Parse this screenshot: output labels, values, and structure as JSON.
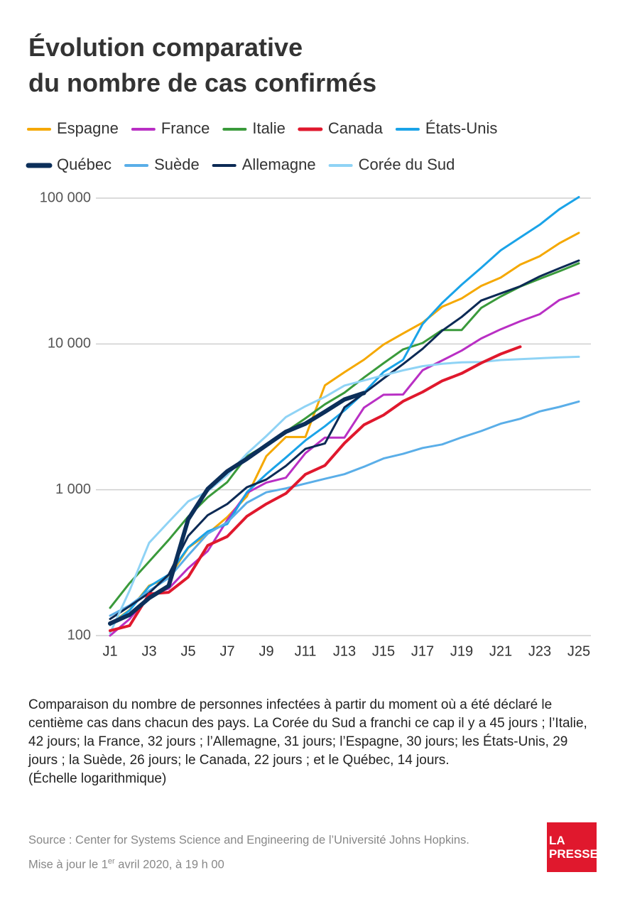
{
  "chart_data": {
    "type": "line",
    "title": [
      "Évolution comparative",
      "du nombre de cas confirmés"
    ],
    "categories": [
      "J1",
      null,
      "J3",
      null,
      "J5",
      null,
      "J7",
      null,
      "J9",
      null,
      "J11",
      null,
      "J13",
      null,
      "J15",
      null,
      "J17",
      null,
      "J19",
      null,
      "J21",
      null,
      "J23",
      null,
      "J25"
    ],
    "yscale": "log",
    "ylim": [
      100,
      100000
    ],
    "yticks": [
      100,
      {
        "value": 1000,
        "label": "1 000"
      },
      {
        "value": 10000,
        "label": "10 000"
      },
      {
        "value": 100000,
        "label": "100 000"
      }
    ],
    "grid": true,
    "legend": "top",
    "series": [
      {
        "name": "Espagne",
        "color": "#f5a800",
        "width": 3,
        "values": [
          120,
          150,
          220,
          250,
          400,
          500,
          650,
          900,
          1700,
          2300,
          2300,
          5200,
          6400,
          7800,
          9900,
          11800,
          14000,
          18000,
          20500,
          25000,
          28500,
          35000,
          40000,
          49000,
          57800
        ]
      },
      {
        "name": "France",
        "color": "#b92fc4",
        "width": 3,
        "values": [
          100,
          130,
          190,
          210,
          290,
          380,
          620,
          950,
          1120,
          1210,
          1780,
          2280,
          2280,
          3660,
          4480,
          4500,
          6600,
          7700,
          9000,
          10900,
          12600,
          14300,
          16000,
          20000,
          22300
        ]
      },
      {
        "name": "Italie",
        "color": "#3a9a3b",
        "width": 3,
        "values": [
          155,
          229,
          322,
          453,
          655,
          888,
          1128,
          1694,
          2036,
          2502,
          3089,
          3858,
          4636,
          5883,
          7375,
          9172,
          10149,
          12462,
          12462,
          17660,
          21157,
          24747,
          27980,
          31506,
          35713
        ]
      },
      {
        "name": "Canada",
        "color": "#e0182d",
        "width": 4,
        "values": [
          108,
          117,
          193,
          198,
          252,
          415,
          478,
          657,
          800,
          943,
          1277,
          1469,
          2088,
          2790,
          3251,
          4042,
          4682,
          5576,
          6280,
          7398,
          8527,
          9560,
          null,
          null,
          null
        ]
      },
      {
        "name": "États-Unis",
        "color": "#1aa3e8",
        "width": 3,
        "values": [
          118,
          149,
          217,
          262,
          402,
          518,
          583,
          959,
          1281,
          1663,
          2179,
          2726,
          3499,
          4632,
          6421,
          7786,
          13680,
          19101,
          25493,
          33276,
          43847,
          53740,
          65778,
          83836,
          101657
        ]
      },
      {
        "name": "Québec",
        "color": "#0c2f5a",
        "width": 6,
        "values": [
          121,
          139,
          181,
          219,
          628,
          1013,
          1339,
          1629,
          2021,
          2498,
          2840,
          3430,
          4162,
          4611,
          null,
          null,
          null,
          null,
          null,
          null,
          null,
          null,
          null,
          null,
          null
        ]
      },
      {
        "name": "Suède",
        "color": "#5aaee8",
        "width": 3,
        "values": [
          137,
          161,
          203,
          248,
          355,
          500,
          599,
          814,
          961,
          1022,
          1103,
          1190,
          1279,
          1439,
          1639,
          1763,
          1934,
          2046,
          2286,
          2526,
          2840,
          3069,
          3447,
          3700,
          4028
        ]
      },
      {
        "name": "Allemagne",
        "color": "#0c2a55",
        "width": 3,
        "values": [
          130,
          159,
          196,
          262,
          482,
          670,
          799,
          1040,
          1176,
          1457,
          1908,
          2078,
          3675,
          4585,
          5795,
          7272,
          9257,
          12327,
          15320,
          19848,
          22213,
          24873,
          29056,
          32986,
          37323
        ]
      },
      {
        "name": "Corée du Sud",
        "color": "#8fd3f5",
        "width": 3,
        "values": [
          104,
          204,
          433,
          602,
          833,
          977,
          1261,
          1766,
          2337,
          3150,
          3736,
          4335,
          5186,
          5621,
          6088,
          6593,
          7041,
          7314,
          7478,
          7513,
          7755,
          7869,
          7979,
          8086,
          8162
        ]
      }
    ],
    "note": "Comparaison du nombre de personnes infectées à partir du moment où a été déclaré le centième cas dans chacun des pays. La Corée du Sud a franchi ce cap il y a 45 jours ; l’Italie, 42 jours; la France, 32 jours ; l’Allemagne, 31 jours; l’Espagne, 30 jours; les États-Unis, 29 jours ; la Suède, 26 jours; le Canada, 22 jours ; et le Québec, 14 jours.",
    "scale_note": "(Échelle logarithmique)",
    "source": "Source : Center for Systems Science and Engineering de l’Université Johns Hopkins.",
    "update": [
      "Mise à jour le 1",
      "er",
      "avril 2020, à 19 h 00"
    ],
    "logo": [
      "LA",
      "PRESSE"
    ]
  }
}
